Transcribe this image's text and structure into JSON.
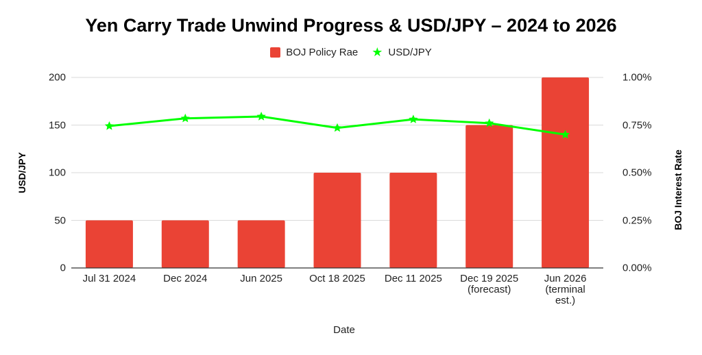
{
  "chart_data": {
    "type": "bar+line",
    "title": "Yen Carry Trade Unwind Progress & USD/JPY – 2024 to 2026",
    "xlabel": "Date",
    "ylabel_left": "USD/JPY",
    "ylabel_right": "BOJ Interest Rate",
    "categories": [
      "Jul 31 2024",
      "Dec 2024",
      "Jun 2025",
      "Oct 18 2025",
      "Dec 11 2025",
      "Dec 19 2025\n(forecast)",
      "Jun 2026\n(terminal\nest.)"
    ],
    "series": [
      {
        "name": "BOJ Policy Rae",
        "type": "bar",
        "axis": "right",
        "unit": "%",
        "color": "#ea4335",
        "values": [
          0.25,
          0.25,
          0.25,
          0.5,
          0.5,
          0.75,
          1.0
        ]
      },
      {
        "name": "USD/JPY",
        "type": "line",
        "axis": "left",
        "marker": "star",
        "color": "#00ff00",
        "values": [
          149,
          157,
          159,
          147,
          156,
          152,
          140
        ]
      }
    ],
    "ylim_left": [
      0,
      200
    ],
    "yticks_left": [
      "0",
      "50",
      "100",
      "150",
      "200"
    ],
    "ylim_right": [
      0,
      1.0
    ],
    "yticks_right": [
      "0.00%",
      "0.25%",
      "0.50%",
      "0.75%",
      "1.00%"
    ],
    "grid": true,
    "legend_position": "top"
  },
  "legend": {
    "bar_label": "BOJ Policy Rae",
    "line_label": "USD/JPY"
  }
}
